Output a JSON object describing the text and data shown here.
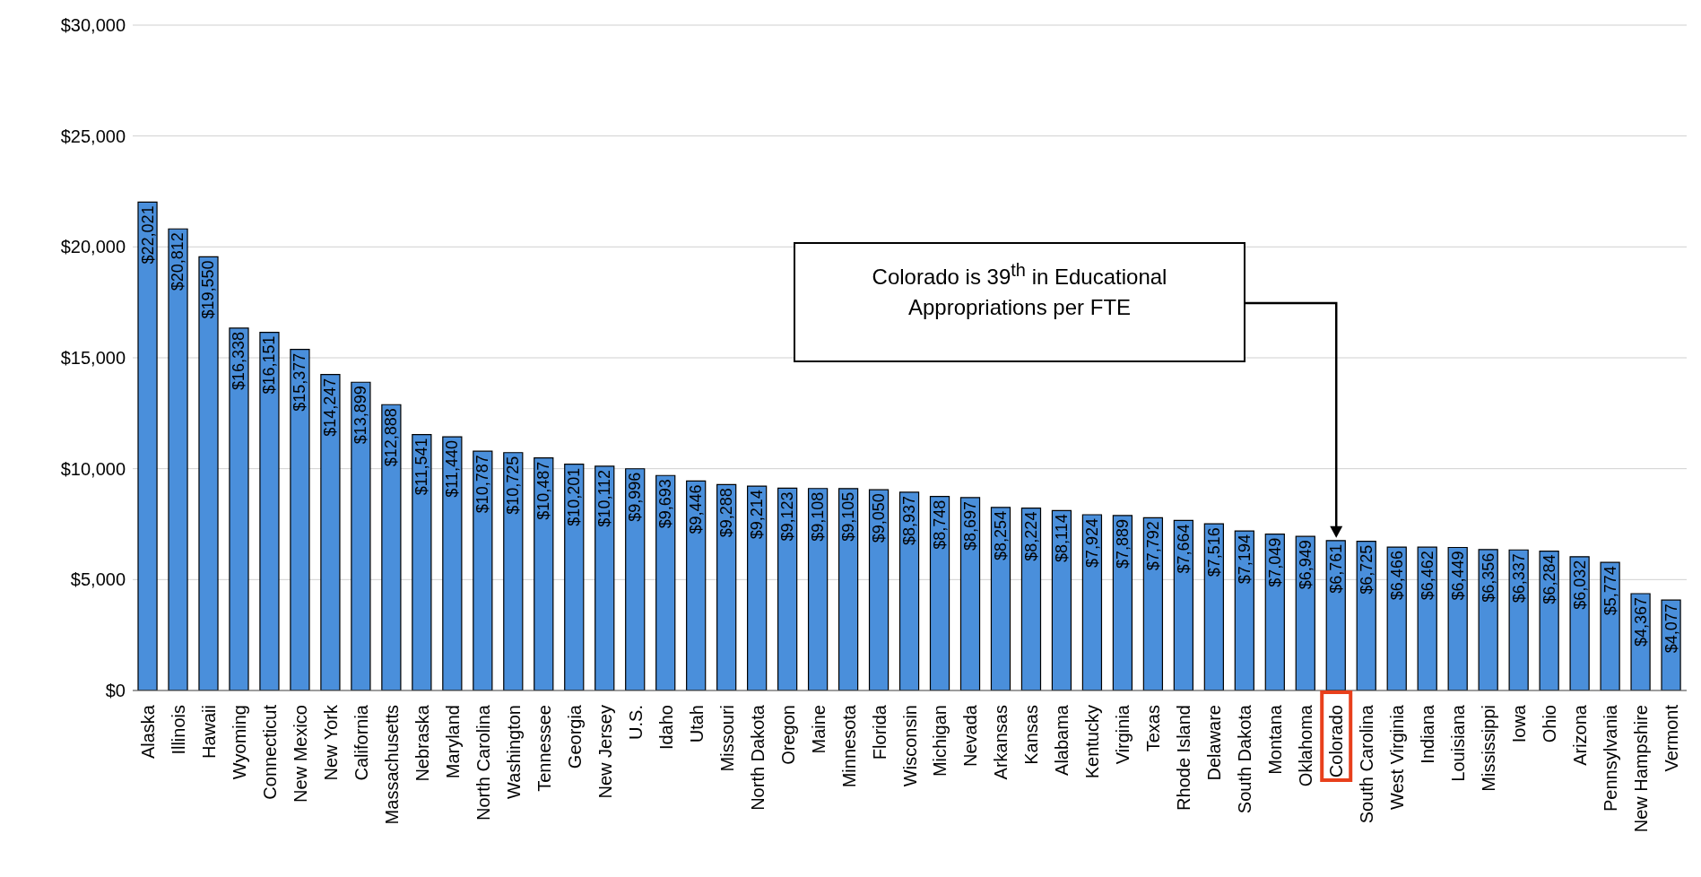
{
  "chart_data": {
    "type": "bar",
    "categories": [
      "Alaska",
      "Illinois",
      "Hawaii",
      "Wyoming",
      "Connecticut",
      "New Mexico",
      "New York",
      "California",
      "Massachusetts",
      "Nebraska",
      "Maryland",
      "North Carolina",
      "Washington",
      "Tennessee",
      "Georgia",
      "New Jersey",
      "U.S.",
      "Idaho",
      "Utah",
      "Missouri",
      "North Dakota",
      "Oregon",
      "Maine",
      "Minnesota",
      "Florida",
      "Wisconsin",
      "Michigan",
      "Nevada",
      "Arkansas",
      "Kansas",
      "Alabama",
      "Kentucky",
      "Virginia",
      "Texas",
      "Rhode Island",
      "Delaware",
      "South Dakota",
      "Montana",
      "Oklahoma",
      "Colorado",
      "South Carolina",
      "West Virginia",
      "Indiana",
      "Louisiana",
      "Mississippi",
      "Iowa",
      "Ohio",
      "Arizona",
      "Pennsylvania",
      "New Hampshire",
      "Vermont"
    ],
    "values": [
      22021,
      20812,
      19550,
      16338,
      16151,
      15377,
      14247,
      13899,
      12888,
      11541,
      11440,
      10787,
      10725,
      10487,
      10201,
      10112,
      9996,
      9693,
      9446,
      9288,
      9214,
      9123,
      9108,
      9105,
      9050,
      8937,
      8748,
      8697,
      8254,
      8224,
      8114,
      7924,
      7889,
      7792,
      7664,
      7516,
      7194,
      7049,
      6949,
      6761,
      6725,
      6466,
      6462,
      6449,
      6356,
      6337,
      6284,
      6032,
      5774,
      4367,
      4077
    ],
    "value_labels": [
      "$22,021",
      "$20,812",
      "$19,550",
      "$16,338",
      "$16,151",
      "$15,377",
      "$14,247",
      "$13,899",
      "$12,888",
      "$11,541",
      "$11,440",
      "$10,787",
      "$10,725",
      "$10,487",
      "$10,201",
      "$10,112",
      "$9,996",
      "$9,693",
      "$9,446",
      "$9,288",
      "$9,214",
      "$9,123",
      "$9,108",
      "$9,105",
      "$9,050",
      "$8,937",
      "$8,748",
      "$8,697",
      "$8,254",
      "$8,224",
      "$8,114",
      "$7,924",
      "$7,889",
      "$7,792",
      "$7,664",
      "$7,516",
      "$7,194",
      "$7,049",
      "$6,949",
      "$6,761",
      "$6,725",
      "$6,466",
      "$6,462",
      "$6,449",
      "$6,356",
      "$6,337",
      "$6,284",
      "$6,032",
      "$5,774",
      "$4,367",
      "$4,077"
    ],
    "color": "#4a8fdb",
    "ylim": [
      0,
      30000
    ],
    "yticks": [
      {
        "value": 0,
        "label": "$0"
      },
      {
        "value": 5000,
        "label": "$5,000"
      },
      {
        "value": 10000,
        "label": "$10,000"
      },
      {
        "value": 15000,
        "label": "$15,000"
      },
      {
        "value": 20000,
        "label": "$20,000"
      },
      {
        "value": 25000,
        "label": "$25,000"
      },
      {
        "value": 30000,
        "label": "$30,000"
      }
    ],
    "grid": "y",
    "legend": false,
    "annotations": [
      "Colorado is 39$^{th}$ in Educational Appropriations per FTE"
    ]
  }
}
